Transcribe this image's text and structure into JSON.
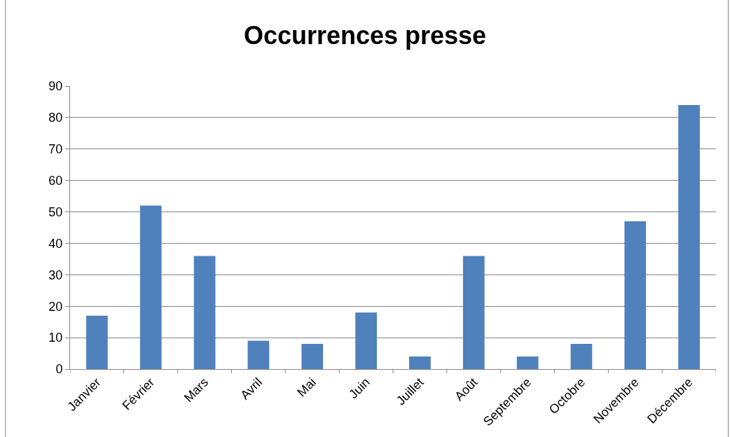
{
  "chart_data": {
    "type": "bar",
    "title": "Occurrences presse",
    "categories": [
      "Janvier",
      "Février",
      "Mars",
      "Avril",
      "Mai",
      "Juin",
      "Juillet",
      "Août",
      "Septembre",
      "Octobre",
      "Novembre",
      "Décembre"
    ],
    "values": [
      17,
      52,
      36,
      9,
      8,
      18,
      4,
      36,
      4,
      8,
      47,
      84
    ],
    "color": "#4f81bd",
    "ylim": [
      0,
      90
    ],
    "yticks": [
      0,
      10,
      20,
      30,
      40,
      50,
      60,
      70,
      80,
      90
    ],
    "grid": "y"
  }
}
